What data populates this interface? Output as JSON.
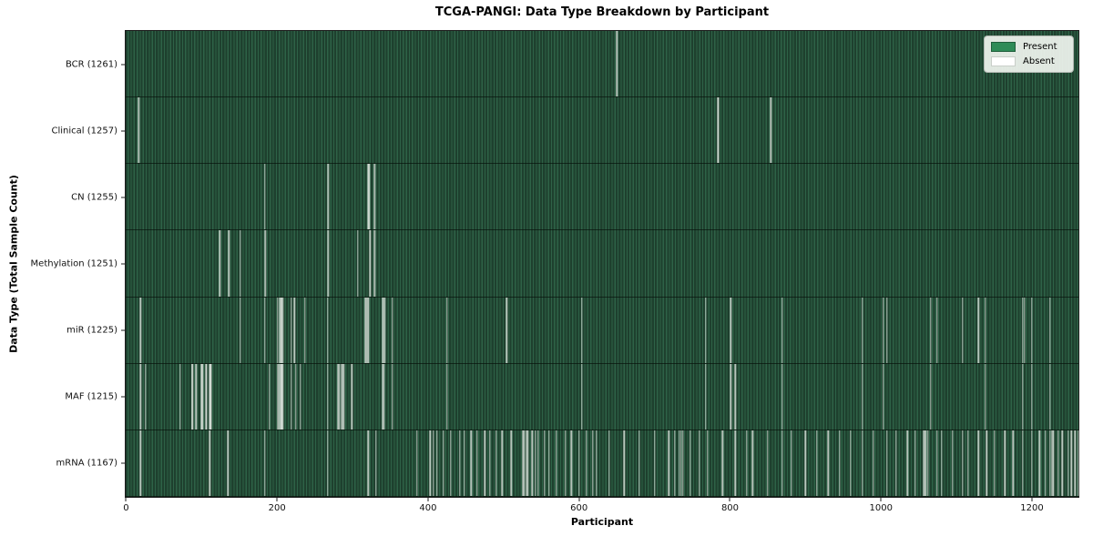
{
  "colors": {
    "present_green": "#2e8b57",
    "stripe_dark_green": "#1e402e",
    "stripe_light_green": "#2e6247",
    "absent_line": "#dee7de",
    "axis_text": "#111111",
    "legend_background": "#f1f5f0",
    "page_background": "#ffffff"
  },
  "legend": {
    "items": [
      {
        "label": "Present",
        "color": "#2e8b57",
        "edge": "#1f5e3b"
      },
      {
        "label": "Absent",
        "color": "#ffffff",
        "edge": "#c9cfc9"
      }
    ]
  },
  "chart_data": {
    "type": "heatmap",
    "title": "TCGA-PANGI: Data Type Breakdown by Participant",
    "xlabel": "Participant",
    "ylabel": "Data Type (Total Sample Count)",
    "legend_entries": [
      "Present",
      "Absent"
    ],
    "legend_position": "upper right",
    "grid": false,
    "n_participants": 1262,
    "x_range": [
      0,
      1262
    ],
    "x_ticks": [
      0,
      200,
      400,
      600,
      800,
      1000,
      1200
    ],
    "rows": [
      {
        "label": "BCR (1261)",
        "data_type": "BCR",
        "present_count": 1261,
        "absent_count": 1,
        "absent_indices": [
          650
        ]
      },
      {
        "label": "Clinical (1257)",
        "data_type": "Clinical",
        "present_count": 1257,
        "absent_count": 5,
        "absent_indices": [
          16,
          17,
          784,
          785,
          854
        ]
      },
      {
        "label": "CN (1255)",
        "data_type": "CN",
        "present_count": 1255,
        "absent_count": 7,
        "absent_indices": [
          184,
          267,
          268,
          321,
          322,
          329,
          330
        ]
      },
      {
        "label": "Methylation (1251)",
        "data_type": "Methylation",
        "present_count": 1251,
        "absent_count": 11,
        "absent_indices": [
          124,
          136,
          151,
          184,
          185,
          267,
          268,
          307,
          323,
          329,
          330
        ]
      },
      {
        "label": "miR (1225)",
        "data_type": "miR",
        "present_count": 1225,
        "absent_count": 37,
        "absent_indices": [
          19,
          151,
          184,
          201,
          203,
          205,
          206,
          208,
          219,
          223,
          237,
          267,
          317,
          319,
          321,
          340,
          342,
          343,
          353,
          425,
          504,
          604,
          768,
          801,
          869,
          975,
          1003,
          1008,
          1066,
          1074,
          1108,
          1129,
          1138,
          1188,
          1190,
          1200,
          1224
        ]
      },
      {
        "label": "MAF (1215)",
        "data_type": "MAF",
        "present_count": 1215,
        "absent_count": 47,
        "absent_indices": [
          19,
          26,
          72,
          87,
          88,
          93,
          100,
          101,
          106,
          107,
          111,
          112,
          113,
          190,
          201,
          202,
          203,
          205,
          206,
          207,
          208,
          219,
          225,
          231,
          267,
          281,
          283,
          285,
          287,
          289,
          299,
          340,
          342,
          353,
          425,
          604,
          768,
          801,
          807,
          869,
          975,
          1003,
          1066,
          1138,
          1188,
          1200,
          1224
        ]
      },
      {
        "label": "mRNA (1167)",
        "data_type": "mRNA",
        "present_count": 1167,
        "absent_count": 95,
        "absent_indices": [
          19,
          111,
          135,
          184,
          267,
          321,
          331,
          385,
          403,
          407,
          412,
          420,
          430,
          442,
          448,
          457,
          465,
          475,
          482,
          490,
          498,
          510,
          526,
          528,
          530,
          532,
          538,
          542,
          546,
          554,
          560,
          570,
          582,
          590,
          600,
          610,
          618,
          623,
          640,
          660,
          680,
          700,
          719,
          727,
          733,
          735,
          738,
          747,
          759,
          770,
          790,
          807,
          822,
          830,
          850,
          869,
          881,
          900,
          915,
          930,
          945,
          960,
          975,
          990,
          1008,
          1020,
          1035,
          1045,
          1056,
          1058,
          1060,
          1062,
          1074,
          1080,
          1095,
          1108,
          1115,
          1129,
          1140,
          1150,
          1164,
          1175,
          1188,
          1200,
          1210,
          1218,
          1224,
          1226,
          1228,
          1235,
          1240,
          1248,
          1252,
          1257,
          1261
        ]
      }
    ]
  }
}
